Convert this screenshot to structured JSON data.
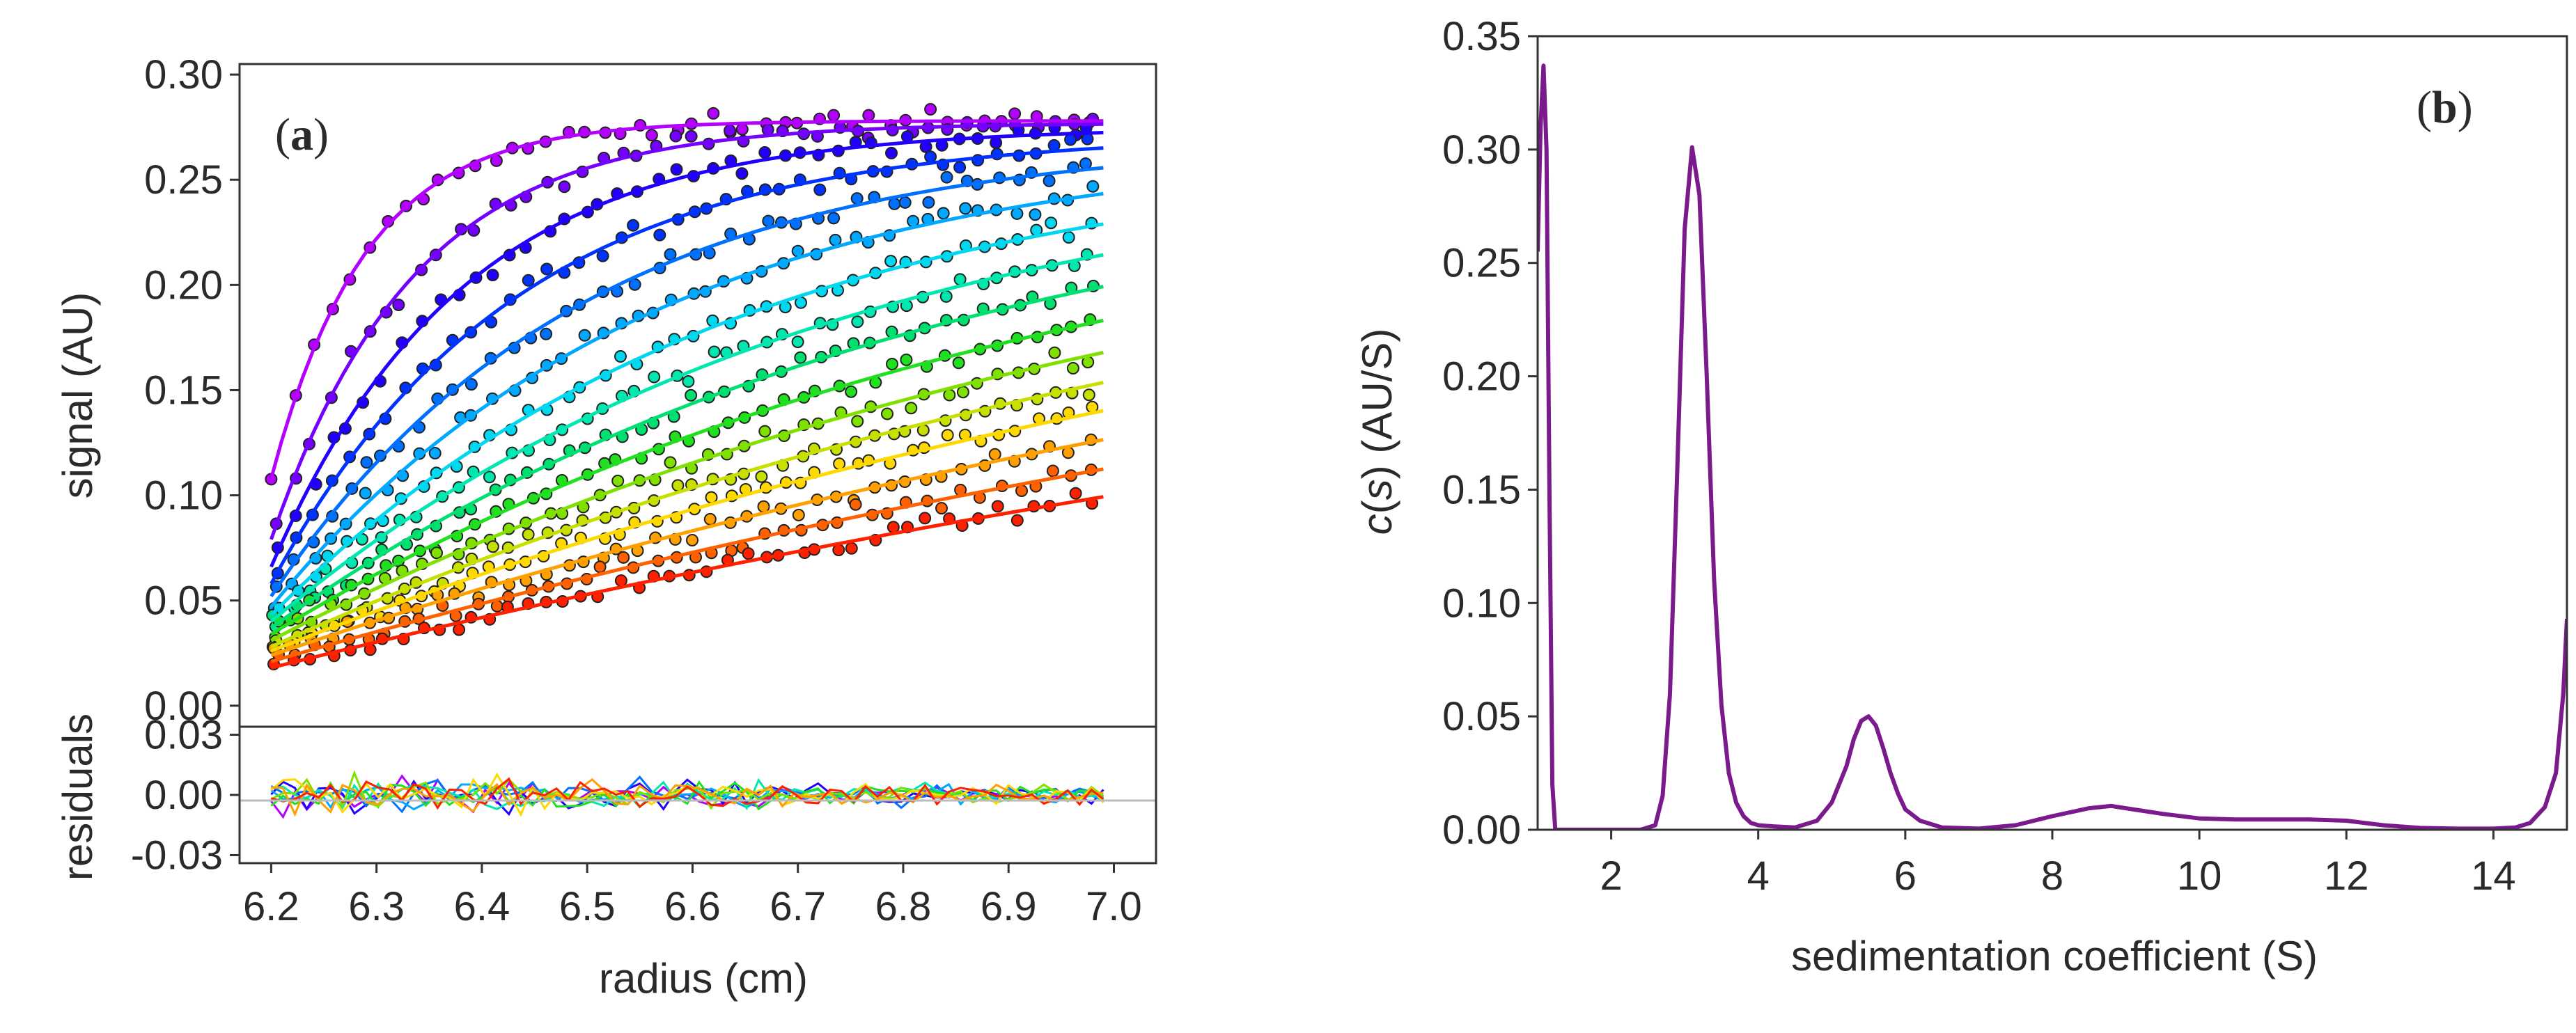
{
  "figure": {
    "panel_a_label": {
      "open": "(",
      "letter": "a",
      "close": ")"
    },
    "panel_b_label": {
      "open": "(",
      "letter": "b",
      "close": ")"
    }
  },
  "chart_data": [
    {
      "type": "scatter",
      "panel": "a",
      "subplot": "main",
      "title": "",
      "xlabel": "radius (cm)",
      "ylabel": "signal (AU)",
      "xlim": [
        6.17,
        7.04
      ],
      "ylim": [
        -0.01,
        0.305
      ],
      "yticks": [
        0.0,
        0.05,
        0.1,
        0.15,
        0.2,
        0.25,
        0.3
      ],
      "ytick_labels": [
        "0.00",
        "0.05",
        "0.10",
        "0.15",
        "0.20",
        "0.25",
        "0.30"
      ],
      "data_range_x": [
        6.2,
        6.99
      ],
      "scans": [
        {
          "color": "#b400ff",
          "start": 0.108,
          "plateau": 0.278,
          "tau": 0.09
        },
        {
          "color": "#7400ff",
          "start": 0.079,
          "plateau": 0.277,
          "tau": 0.135
        },
        {
          "color": "#2200ff",
          "start": 0.066,
          "plateau": 0.275,
          "tau": 0.18
        },
        {
          "color": "#0033ff",
          "start": 0.058,
          "plateau": 0.272,
          "tau": 0.23
        },
        {
          "color": "#0070ff",
          "start": 0.052,
          "plateau": 0.27,
          "tau": 0.29
        },
        {
          "color": "#00a8ff",
          "start": 0.047,
          "plateau": 0.268,
          "tau": 0.36
        },
        {
          "color": "#00d8f0",
          "start": 0.043,
          "plateau": 0.266,
          "tau": 0.44
        },
        {
          "color": "#00e8b0",
          "start": 0.04,
          "plateau": 0.265,
          "tau": 0.53
        },
        {
          "color": "#00e070",
          "start": 0.037,
          "plateau": 0.264,
          "tau": 0.63
        },
        {
          "color": "#20e020",
          "start": 0.034,
          "plateau": 0.263,
          "tau": 0.75
        },
        {
          "color": "#80e000",
          "start": 0.031,
          "plateau": 0.262,
          "tau": 0.88
        },
        {
          "color": "#c8e000",
          "start": 0.028,
          "plateau": 0.261,
          "tau": 1.02
        },
        {
          "color": "#ffd800",
          "start": 0.026,
          "plateau": 0.26,
          "tau": 1.18
        },
        {
          "color": "#ffa000",
          "start": 0.024,
          "plateau": 0.259,
          "tau": 1.38
        },
        {
          "color": "#ff6000",
          "start": 0.021,
          "plateau": 0.258,
          "tau": 1.62
        },
        {
          "color": "#ff2000",
          "start": 0.018,
          "plateau": 0.257,
          "tau": 1.9
        }
      ]
    },
    {
      "type": "line",
      "panel": "a",
      "subplot": "residuals",
      "ylabel": "residuals",
      "xlabel": "radius (cm)",
      "xlim": [
        6.17,
        7.04
      ],
      "ylim": [
        -0.034,
        0.034
      ],
      "xticks": [
        6.2,
        6.3,
        6.4,
        6.5,
        6.6,
        6.7,
        6.8,
        6.9,
        7.0
      ],
      "xtick_labels": [
        "6.2",
        "6.3",
        "6.4",
        "6.5",
        "6.6",
        "6.7",
        "6.8",
        "6.9",
        "7.0"
      ],
      "yticks": [
        0.03,
        0.0,
        -0.03
      ],
      "ytick_labels": [
        "0.03",
        "0.00",
        "-0.03"
      ],
      "amplitude": 0.012,
      "series_colors": [
        "#b400ff",
        "#2200ff",
        "#0070ff",
        "#00a8ff",
        "#00e8b0",
        "#20e020",
        "#80e000",
        "#ffd800",
        "#ffa000",
        "#ff2000"
      ]
    },
    {
      "type": "line",
      "panel": "b",
      "title": "",
      "xlabel": "sedimentation coefficient (S)",
      "ylabel_italic": "c",
      "ylabel_pre": "(",
      "ylabel_s": "s",
      "ylabel_post": ") (AU/S)",
      "xlim": [
        1.0,
        15.0
      ],
      "ylim": [
        0.0,
        0.35
      ],
      "xticks": [
        2,
        4,
        6,
        8,
        10,
        12,
        14
      ],
      "xtick_labels": [
        "2",
        "4",
        "6",
        "8",
        "10",
        "12",
        "14"
      ],
      "yticks": [
        0.0,
        0.05,
        0.1,
        0.15,
        0.2,
        0.25,
        0.3,
        0.35
      ],
      "ytick_labels": [
        "0.00",
        "0.05",
        "0.10",
        "0.15",
        "0.20",
        "0.25",
        "0.30",
        "0.35"
      ],
      "color": "#7a1a8c",
      "x": [
        1.0,
        1.04,
        1.08,
        1.12,
        1.16,
        1.2,
        1.24,
        1.3,
        1.5,
        2.0,
        2.4,
        2.6,
        2.7,
        2.8,
        2.9,
        3.0,
        3.1,
        3.2,
        3.3,
        3.4,
        3.5,
        3.6,
        3.7,
        3.8,
        3.9,
        4.0,
        4.2,
        4.5,
        4.8,
        5.0,
        5.2,
        5.3,
        5.4,
        5.5,
        5.6,
        5.7,
        5.8,
        5.9,
        6.0,
        6.2,
        6.5,
        7.0,
        7.5,
        8.0,
        8.5,
        8.8,
        9.0,
        9.5,
        10.0,
        10.5,
        11.0,
        11.5,
        12.0,
        12.5,
        13.0,
        13.5,
        14.0,
        14.3,
        14.5,
        14.7,
        14.85,
        14.95,
        15.0
      ],
      "y": [
        0.255,
        0.31,
        0.337,
        0.3,
        0.15,
        0.02,
        0.0,
        0.0,
        0.0,
        0.0,
        0.0,
        0.002,
        0.015,
        0.06,
        0.16,
        0.265,
        0.301,
        0.28,
        0.2,
        0.11,
        0.055,
        0.025,
        0.012,
        0.006,
        0.003,
        0.002,
        0.0015,
        0.001,
        0.004,
        0.012,
        0.028,
        0.04,
        0.048,
        0.05,
        0.046,
        0.036,
        0.025,
        0.016,
        0.009,
        0.004,
        0.001,
        0.0005,
        0.002,
        0.006,
        0.0095,
        0.0105,
        0.0095,
        0.007,
        0.005,
        0.0045,
        0.0045,
        0.0045,
        0.004,
        0.002,
        0.0008,
        0.0005,
        0.0005,
        0.001,
        0.003,
        0.01,
        0.025,
        0.06,
        0.093
      ]
    }
  ]
}
